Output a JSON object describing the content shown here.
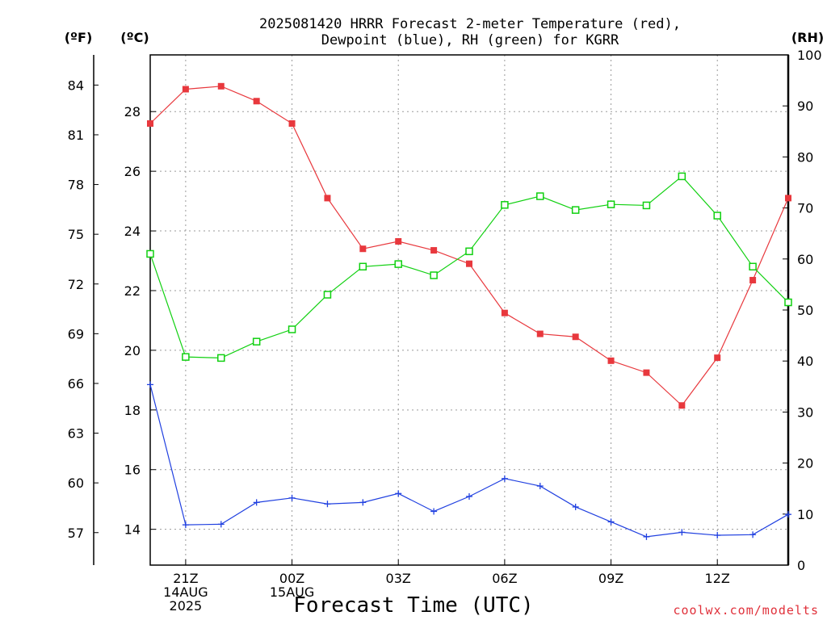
{
  "title_line1": "2025081420 HRRR Forecast 2-meter Temperature (red),",
  "title_line2": "Dewpoint (blue), RH (green) for KGRR",
  "units": {
    "f": "(ºF)",
    "c": "(ºC)",
    "rh": "(RH)"
  },
  "credit": "coolwx.com/modelts",
  "colors": {
    "temperature": "#e8383d",
    "dewpoint": "#2040e0",
    "rh": "#10d010"
  },
  "chart_data": {
    "type": "line",
    "title": "2025081420 HRRR Forecast 2-meter Temperature (red), Dewpoint (blue), RH (green) for KGRR",
    "xlabel": "Forecast Time (UTC)",
    "x": [
      0,
      1,
      2,
      3,
      4,
      5,
      6,
      7,
      8,
      9,
      10,
      11,
      12,
      13,
      14,
      15,
      16,
      17,
      18
    ],
    "x_range": [
      0,
      18
    ],
    "x_ticks": [
      {
        "x": 1,
        "lines": [
          "21Z",
          "14AUG",
          "2025"
        ]
      },
      {
        "x": 4,
        "lines": [
          "00Z",
          "15AUG"
        ]
      },
      {
        "x": 7,
        "lines": [
          "03Z"
        ]
      },
      {
        "x": 10,
        "lines": [
          "06Z"
        ]
      },
      {
        "x": 13,
        "lines": [
          "09Z"
        ]
      },
      {
        "x": 16,
        "lines": [
          "12Z"
        ]
      }
    ],
    "y_left_c": {
      "range": [
        12.8,
        29.9
      ],
      "ticks": [
        "14",
        "16",
        "18",
        "20",
        "22",
        "24",
        "26",
        "28"
      ]
    },
    "y_left_f": {
      "ticks": [
        "57",
        "60",
        "63",
        "66",
        "69",
        "72",
        "75",
        "78",
        "81",
        "84"
      ]
    },
    "y_right_rh": {
      "range": [
        0,
        100
      ],
      "ticks": [
        "0",
        "10",
        "20",
        "30",
        "40",
        "50",
        "60",
        "70",
        "80",
        "90",
        "100"
      ]
    },
    "grid": true,
    "series": [
      {
        "name": "Temperature",
        "axis": "c",
        "marker": "filled-square",
        "values": [
          27.6,
          28.75,
          28.85,
          28.35,
          27.6,
          25.1,
          23.4,
          23.65,
          23.35,
          22.9,
          21.25,
          20.55,
          20.45,
          19.65,
          19.25,
          18.15,
          19.75,
          22.35,
          25.1
        ]
      },
      {
        "name": "Dewpoint",
        "axis": "c",
        "marker": "plus",
        "values": [
          18.85,
          14.15,
          14.17,
          14.9,
          15.05,
          14.85,
          14.9,
          15.2,
          14.6,
          15.1,
          15.7,
          15.45,
          14.75,
          14.25,
          13.75,
          13.9,
          13.8,
          13.82,
          14.5
        ]
      },
      {
        "name": "RH",
        "axis": "rh",
        "marker": "open-square",
        "values": [
          61,
          40.8,
          40.6,
          43.8,
          46.2,
          53,
          58.5,
          59,
          56.8,
          61.5,
          70.6,
          72.3,
          69.6,
          70.7,
          70.5,
          76.2,
          68.5,
          58.5,
          51.5
        ]
      }
    ]
  }
}
